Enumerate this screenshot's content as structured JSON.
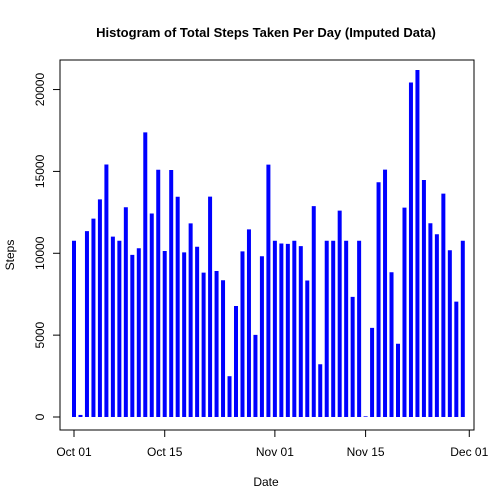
{
  "chart_data": {
    "type": "bar",
    "title": "Histogram of Total Steps Taken Per Day (Imputed Data)",
    "xlabel": "Date",
    "ylabel": "Steps",
    "color": "#0000ff",
    "ylim": [
      0,
      21194
    ],
    "yticks": [
      0,
      5000,
      10000,
      15000,
      20000
    ],
    "xticks": [
      {
        "label": "Oct 01",
        "day": 0
      },
      {
        "label": "Oct 15",
        "day": 14
      },
      {
        "label": "Nov 01",
        "day": 31
      },
      {
        "label": "Nov 15",
        "day": 45
      },
      {
        "label": "Dec 01",
        "day": 61
      }
    ],
    "x": [
      "2012-10-01",
      "2012-10-02",
      "2012-10-03",
      "2012-10-04",
      "2012-10-05",
      "2012-10-06",
      "2012-10-07",
      "2012-10-08",
      "2012-10-09",
      "2012-10-10",
      "2012-10-11",
      "2012-10-12",
      "2012-10-13",
      "2012-10-14",
      "2012-10-15",
      "2012-10-16",
      "2012-10-17",
      "2012-10-18",
      "2012-10-19",
      "2012-10-20",
      "2012-10-21",
      "2012-10-22",
      "2012-10-23",
      "2012-10-24",
      "2012-10-25",
      "2012-10-26",
      "2012-10-27",
      "2012-10-28",
      "2012-10-29",
      "2012-10-30",
      "2012-10-31",
      "2012-11-01",
      "2012-11-02",
      "2012-11-03",
      "2012-11-04",
      "2012-11-05",
      "2012-11-06",
      "2012-11-07",
      "2012-11-08",
      "2012-11-09",
      "2012-11-10",
      "2012-11-11",
      "2012-11-12",
      "2012-11-13",
      "2012-11-14",
      "2012-11-15",
      "2012-11-16",
      "2012-11-17",
      "2012-11-18",
      "2012-11-19",
      "2012-11-20",
      "2012-11-21",
      "2012-11-22",
      "2012-11-23",
      "2012-11-24",
      "2012-11-25",
      "2012-11-26",
      "2012-11-27",
      "2012-11-28",
      "2012-11-29",
      "2012-11-30"
    ],
    "values": [
      10766,
      126,
      11352,
      12116,
      13294,
      15420,
      11015,
      10766,
      12811,
      9900,
      10304,
      17382,
      12426,
      15098,
      10139,
      15084,
      13452,
      10056,
      11829,
      10395,
      8821,
      13460,
      8918,
      8355,
      2492,
      6778,
      10119,
      11458,
      5018,
      9819,
      15414,
      10766,
      10600,
      10571,
      10766,
      10439,
      8334,
      12883,
      3219,
      10766,
      10766,
      12608,
      10765,
      7336,
      10766,
      41,
      5441,
      14339,
      15110,
      8841,
      4472,
      12787,
      20427,
      21194,
      14478,
      11834,
      11162,
      13646,
      10183,
      7047,
      10766
    ]
  }
}
